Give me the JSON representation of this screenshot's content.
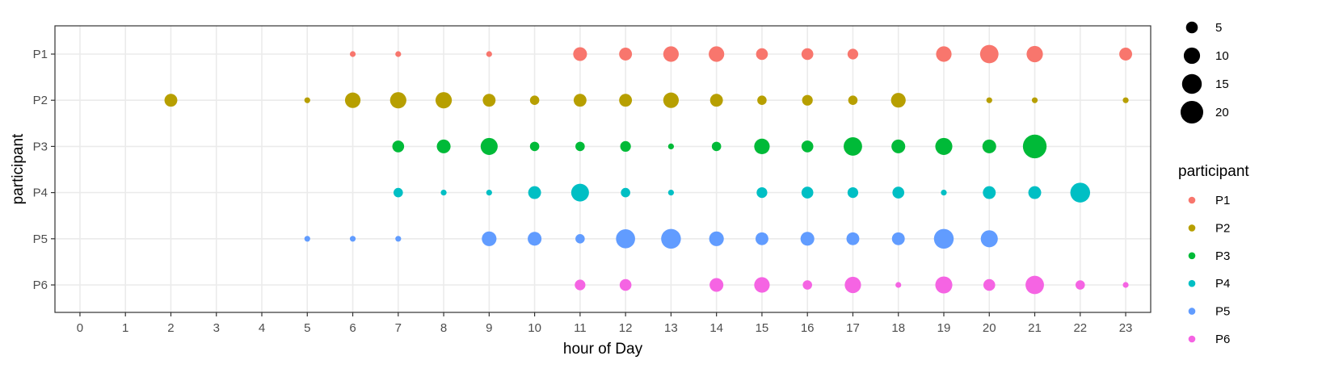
{
  "chart_data": {
    "type": "scatter",
    "xlabel": "hour of Day",
    "ylabel": "participant",
    "x_ticks": [
      "0",
      "1",
      "2",
      "3",
      "4",
      "5",
      "6",
      "7",
      "8",
      "9",
      "10",
      "11",
      "12",
      "13",
      "14",
      "15",
      "16",
      "17",
      "18",
      "19",
      "20",
      "21",
      "22",
      "23"
    ],
    "y_categories": [
      "P1",
      "P2",
      "P3",
      "P4",
      "P5",
      "P6"
    ],
    "xlim": [
      -0.55,
      23.55
    ],
    "grid": true,
    "size_legend": {
      "title": "",
      "values": [
        5,
        10,
        15,
        20
      ]
    },
    "color_legend": {
      "title": "participant",
      "entries": [
        "P1",
        "P2",
        "P3",
        "P4",
        "P5",
        "P6"
      ],
      "placement": "right"
    },
    "colors": {
      "P1": "#F8766D",
      "P2": "#B79F00",
      "P3": "#00BA38",
      "P4": "#00BFC4",
      "P5": "#619CFF",
      "P6": "#F564E3"
    },
    "series": [
      {
        "name": "P1",
        "points": [
          [
            6,
            1
          ],
          [
            7,
            1
          ],
          [
            9,
            1
          ],
          [
            11,
            7
          ],
          [
            12,
            6
          ],
          [
            13,
            9
          ],
          [
            14,
            9
          ],
          [
            15,
            5
          ],
          [
            16,
            5
          ],
          [
            17,
            4
          ],
          [
            19,
            9
          ],
          [
            20,
            13
          ],
          [
            21,
            10
          ],
          [
            23,
            6
          ]
        ]
      },
      {
        "name": "P2",
        "points": [
          [
            2,
            6
          ],
          [
            5,
            1
          ],
          [
            6,
            9
          ],
          [
            7,
            10
          ],
          [
            8,
            10
          ],
          [
            9,
            6
          ],
          [
            10,
            3
          ],
          [
            11,
            6
          ],
          [
            12,
            6
          ],
          [
            13,
            9
          ],
          [
            14,
            6
          ],
          [
            15,
            3
          ],
          [
            16,
            4
          ],
          [
            17,
            3
          ],
          [
            18,
            8
          ],
          [
            20,
            1
          ],
          [
            21,
            1
          ],
          [
            23,
            1
          ]
        ]
      },
      {
        "name": "P3",
        "points": [
          [
            7,
            5
          ],
          [
            8,
            7
          ],
          [
            9,
            11
          ],
          [
            10,
            3
          ],
          [
            11,
            3
          ],
          [
            12,
            4
          ],
          [
            13,
            1
          ],
          [
            14,
            3
          ],
          [
            15,
            9
          ],
          [
            16,
            5
          ],
          [
            17,
            13
          ],
          [
            18,
            7
          ],
          [
            19,
            11
          ],
          [
            20,
            7
          ],
          [
            21,
            22
          ]
        ]
      },
      {
        "name": "P4",
        "points": [
          [
            7,
            3
          ],
          [
            8,
            1
          ],
          [
            9,
            1
          ],
          [
            10,
            6
          ],
          [
            11,
            12
          ],
          [
            12,
            3
          ],
          [
            13,
            1
          ],
          [
            15,
            4
          ],
          [
            16,
            5
          ],
          [
            17,
            4
          ],
          [
            18,
            5
          ],
          [
            19,
            1
          ],
          [
            20,
            6
          ],
          [
            21,
            6
          ],
          [
            22,
            15
          ]
        ]
      },
      {
        "name": "P5",
        "points": [
          [
            5,
            1
          ],
          [
            6,
            1
          ],
          [
            7,
            1
          ],
          [
            9,
            8
          ],
          [
            10,
            7
          ],
          [
            11,
            3
          ],
          [
            12,
            14
          ],
          [
            13,
            15
          ],
          [
            14,
            8
          ],
          [
            15,
            6
          ],
          [
            16,
            7
          ],
          [
            17,
            6
          ],
          [
            18,
            6
          ],
          [
            19,
            15
          ],
          [
            20,
            11
          ]
        ]
      },
      {
        "name": "P6",
        "points": [
          [
            11,
            4
          ],
          [
            12,
            5
          ],
          [
            14,
            7
          ],
          [
            15,
            9
          ],
          [
            16,
            3
          ],
          [
            17,
            10
          ],
          [
            18,
            1
          ],
          [
            19,
            11
          ],
          [
            20,
            5
          ],
          [
            21,
            13
          ],
          [
            22,
            3
          ],
          [
            23,
            1
          ]
        ]
      }
    ]
  }
}
